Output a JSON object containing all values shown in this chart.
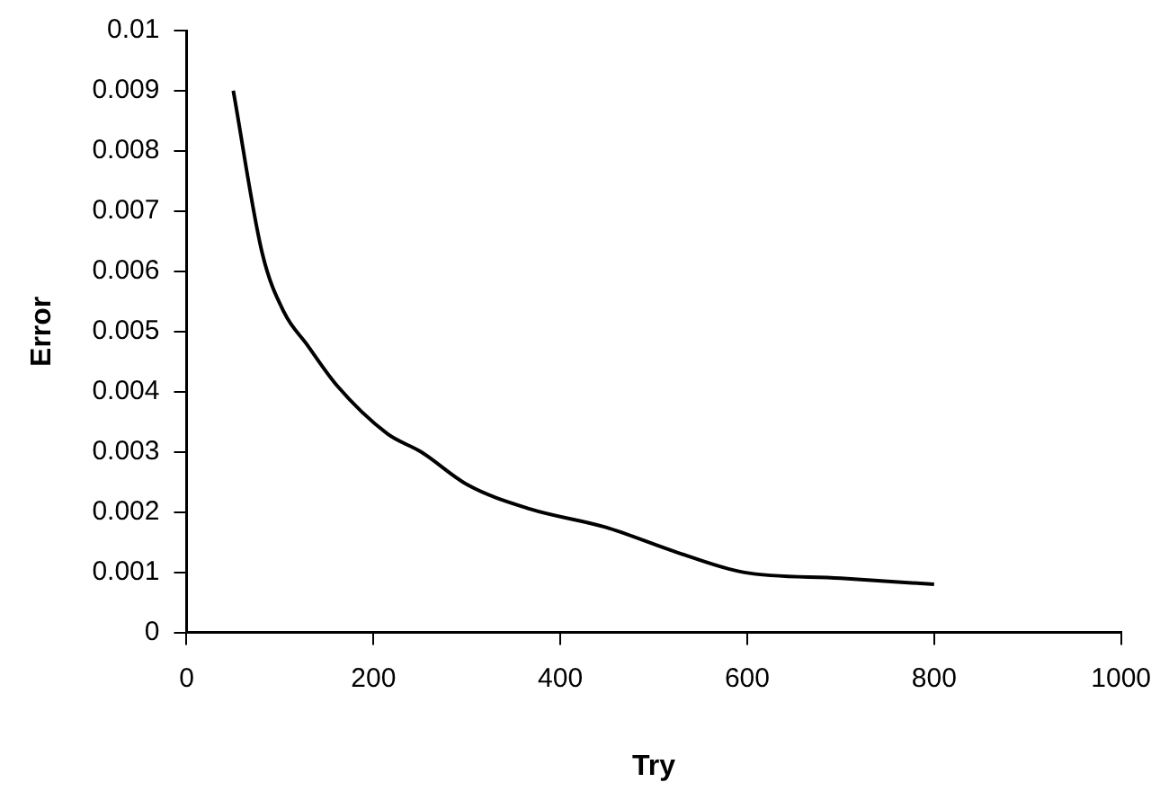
{
  "chart_data": {
    "type": "line",
    "xlabel": "Try",
    "ylabel": "Error",
    "x": [
      50,
      81,
      105,
      128,
      161,
      215,
      251,
      301,
      368,
      448,
      525,
      596,
      700,
      800
    ],
    "series": [
      {
        "color": "#000000",
        "values": [
          0.009,
          0.0063,
          0.0053,
          0.0048,
          0.0041,
          0.0033,
          0.003,
          0.00245,
          0.00205,
          0.00175,
          0.00133,
          0.001,
          0.0009,
          0.0008
        ]
      }
    ],
    "xlim": [
      0,
      1000
    ],
    "xticks": [
      0,
      200,
      400,
      600,
      800,
      1000
    ],
    "ylim": [
      0,
      0.01
    ],
    "yticks": [
      0,
      0.001,
      0.002,
      0.003,
      0.004,
      0.005,
      0.006,
      0.007,
      0.008,
      0.009,
      0.01
    ],
    "grid": false,
    "legend": false,
    "marker": "none",
    "line_style": "solid"
  }
}
